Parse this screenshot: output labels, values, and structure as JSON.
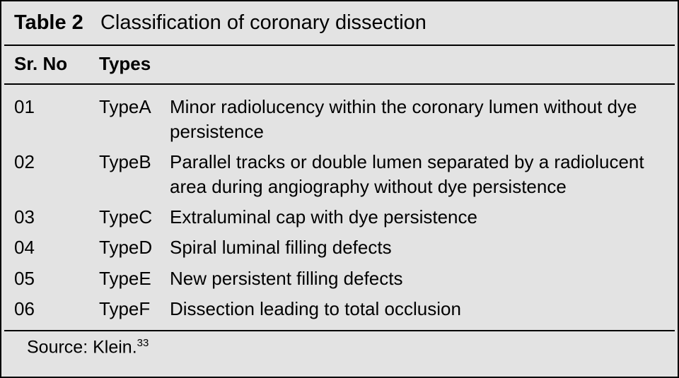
{
  "table": {
    "label": "Table 2",
    "title": "Classification of coronary dissection",
    "columns": {
      "srno": "Sr. No",
      "types": "Types"
    },
    "rows": [
      {
        "sr": "01",
        "type": "TypeA",
        "desc": "Minor radiolucency within the coronary lumen without dye persistence"
      },
      {
        "sr": "02",
        "type": "TypeB",
        "desc": "Parallel tracks or double lumen separated by a radiolucent area during angiography without dye persistence"
      },
      {
        "sr": "03",
        "type": "TypeC",
        "desc": "Extraluminal cap with dye persistence"
      },
      {
        "sr": "04",
        "type": "TypeD",
        "desc": "Spiral luminal filling defects"
      },
      {
        "sr": "05",
        "type": "TypeE",
        "desc": "New persistent filling defects"
      },
      {
        "sr": "06",
        "type": "TypeF",
        "desc": "Dissection leading to total occlusion"
      }
    ],
    "source_prefix": "Source: ",
    "source_name": "Klein.",
    "source_ref": "33",
    "colors": {
      "background": "#e3e3e3",
      "border": "#000000",
      "text": "#000000"
    },
    "fontsize": {
      "title": 29,
      "header": 26,
      "body": 26,
      "source": 25
    }
  }
}
